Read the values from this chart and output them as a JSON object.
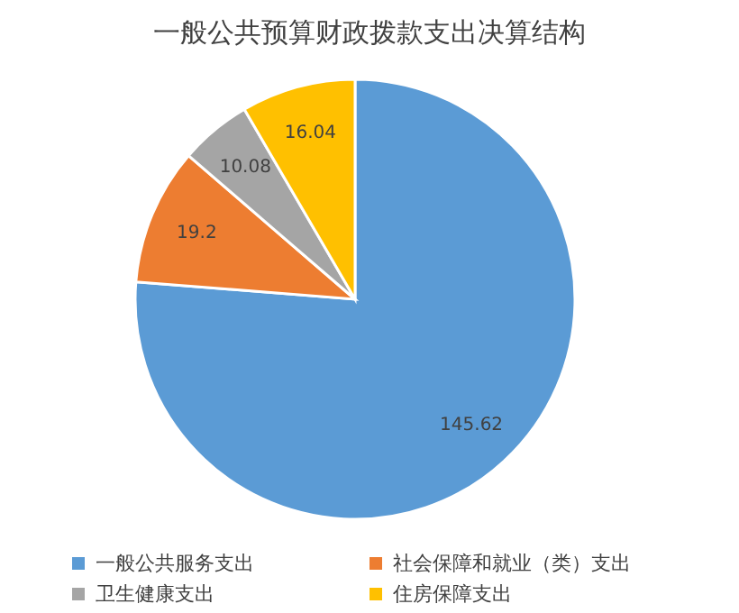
{
  "chart_data": {
    "type": "pie",
    "title": "一般公共预算财政拨款支出决算结构",
    "categories": [
      "一般公共服务支出",
      "社会保障和就业（类）支出",
      "卫生健康支出",
      "住房保障支出"
    ],
    "values": [
      145.62,
      19.2,
      10.08,
      16.04
    ],
    "colors": [
      "#5b9bd5",
      "#ed7d31",
      "#a5a5a5",
      "#ffc000"
    ],
    "data_labels": true,
    "legend": "bottom"
  }
}
